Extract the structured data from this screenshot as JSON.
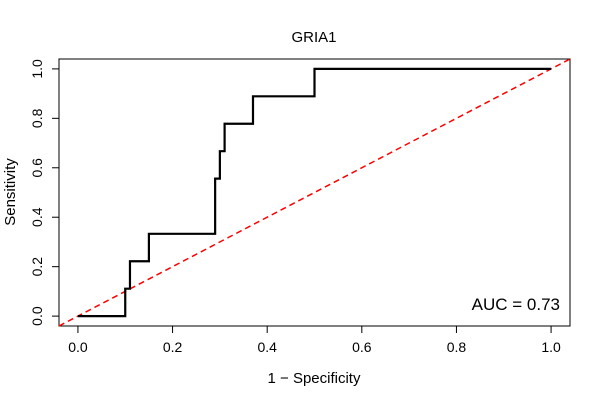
{
  "chart_data": {
    "type": "line",
    "title": "GRIA1",
    "xlabel": "1 − Specificity",
    "ylabel": "Sensitivity",
    "xlim": [
      -0.04,
      1.04
    ],
    "ylim": [
      -0.04,
      1.04
    ],
    "x_ticks": [
      0.0,
      0.2,
      0.4,
      0.6,
      0.8,
      1.0
    ],
    "y_ticks": [
      0.0,
      0.2,
      0.4,
      0.6,
      0.8,
      1.0
    ],
    "x_tick_labels": [
      "0.0",
      "0.2",
      "0.4",
      "0.6",
      "0.8",
      "1.0"
    ],
    "y_tick_labels": [
      "0.0",
      "0.2",
      "0.4",
      "0.6",
      "0.8",
      "1.0"
    ],
    "grid": false,
    "series": [
      {
        "color": "#000000",
        "style": "solid",
        "x": [
          0.0,
          0.1,
          0.1,
          0.11,
          0.11,
          0.15,
          0.15,
          0.29,
          0.29,
          0.3,
          0.3,
          0.31,
          0.31,
          0.37,
          0.37,
          0.5,
          0.5,
          1.0
        ],
        "y": [
          0.0,
          0.0,
          0.111,
          0.111,
          0.222,
          0.222,
          0.333,
          0.333,
          0.556,
          0.556,
          0.667,
          0.667,
          0.778,
          0.778,
          0.889,
          0.889,
          1.0,
          1.0
        ]
      },
      {
        "color": "#ff0000",
        "style": "dashed",
        "x": [
          -0.04,
          1.04
        ],
        "y": [
          -0.04,
          1.04
        ]
      }
    ],
    "annotation": "AUC = 0.73"
  }
}
